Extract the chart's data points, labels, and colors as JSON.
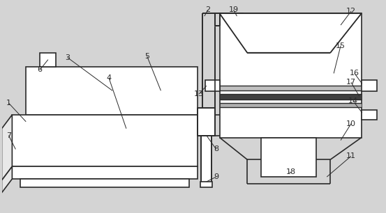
{
  "fig_width": 5.53,
  "fig_height": 3.06,
  "dpi": 100,
  "bg_color": "#d4d4d4",
  "line_color": "#2a2a2a",
  "lw": 1.2
}
